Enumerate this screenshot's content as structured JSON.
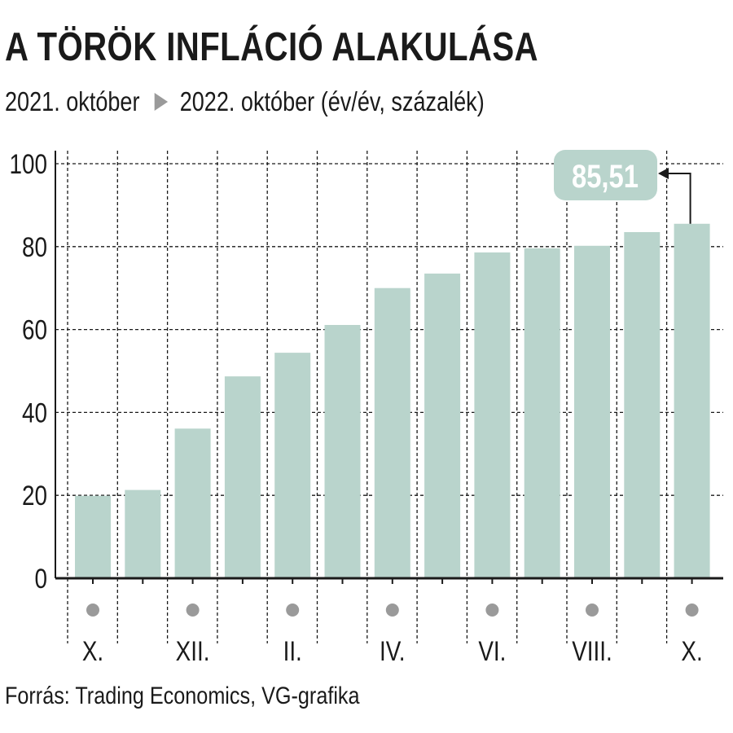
{
  "header": {
    "title": "A TÖRÖK INFLÁCIÓ ALAKULÁSA",
    "subtitle_start": "2021. október",
    "subtitle_end": "2022. október (év/év, százalék)"
  },
  "footer": {
    "source": "Forrás: Trading Economics, VG-grafika"
  },
  "chart_data": {
    "type": "bar",
    "categories": [
      "2021-10",
      "2021-11",
      "2021-12",
      "2022-01",
      "2022-02",
      "2022-03",
      "2022-04",
      "2022-05",
      "2022-06",
      "2022-07",
      "2022-08",
      "2022-09",
      "2022-10"
    ],
    "values": [
      19.9,
      21.3,
      36.1,
      48.7,
      54.4,
      61.1,
      70.0,
      73.5,
      78.6,
      79.6,
      80.2,
      83.5,
      85.51
    ],
    "x_tick_labels": [
      "X.",
      "XII.",
      "II.",
      "IV.",
      "VI.",
      "VIII.",
      "X."
    ],
    "x_tick_categories": [
      "2021-10",
      "2021-12",
      "2022-02",
      "2022-04",
      "2022-06",
      "2022-08",
      "2022-10"
    ],
    "y_ticks": [
      "0",
      "20",
      "40",
      "60",
      "80",
      "100"
    ],
    "ylim": [
      0,
      100
    ],
    "grid": true,
    "highlight": {
      "category": "2022-10",
      "label": "85,51"
    },
    "colors": {
      "bar": "#b9d4cc",
      "callout": "#b9d4cc",
      "callout_text": "#ffffff",
      "marker": "#9a9a9a",
      "grid": "#1a1a1a"
    }
  }
}
